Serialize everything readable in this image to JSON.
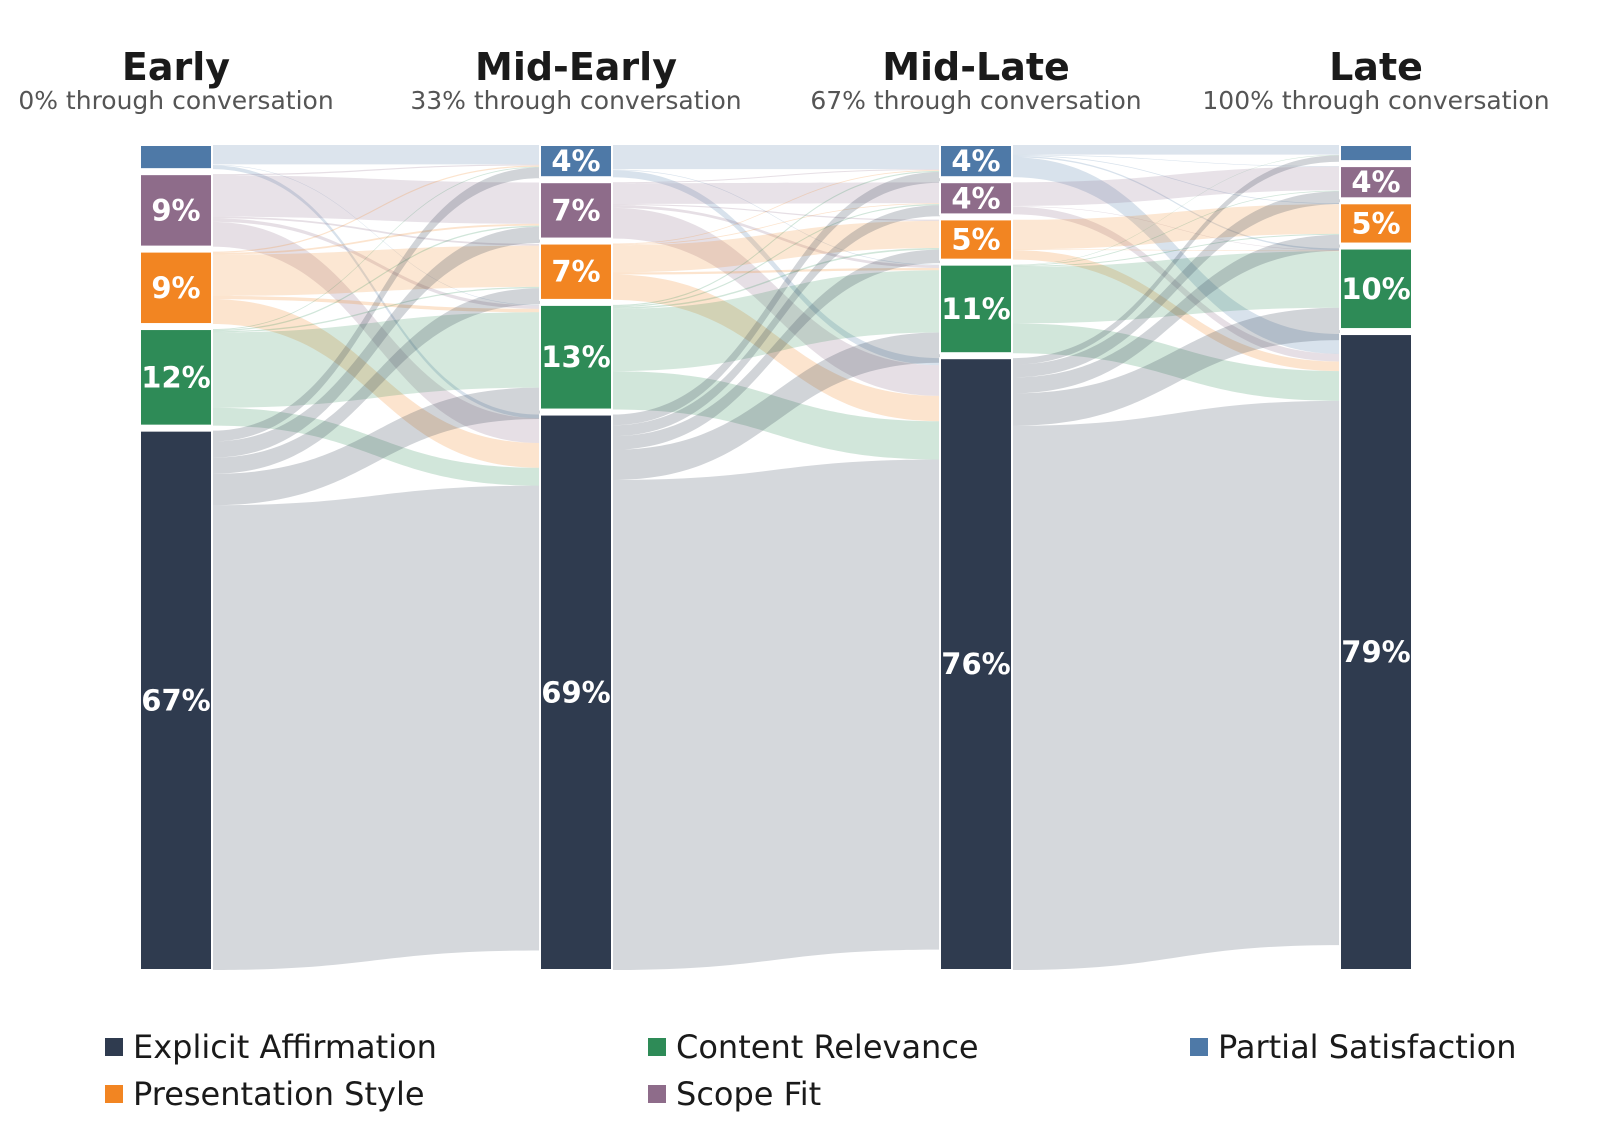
{
  "chart_data": {
    "type": "sankey",
    "stages": [
      {
        "name": "Early",
        "subtitle": "0% through conversation"
      },
      {
        "name": "Mid-Early",
        "subtitle": "33% through conversation"
      },
      {
        "name": "Mid-Late",
        "subtitle": "67% through conversation"
      },
      {
        "name": "Late",
        "subtitle": "100% through conversation"
      }
    ],
    "categories": [
      {
        "key": "partial",
        "name": "Partial Satisfaction",
        "color": "#4e79a7"
      },
      {
        "key": "scope",
        "name": "Scope Fit",
        "color": "#8e6c8a"
      },
      {
        "key": "presentation",
        "name": "Presentation Style",
        "color": "#f28522"
      },
      {
        "key": "content",
        "name": "Content Relevance",
        "color": "#2e8b57"
      },
      {
        "key": "explicit",
        "name": "Explicit Affirmation",
        "color": "#2f3b4f"
      }
    ],
    "shares": [
      [
        3,
        9,
        9,
        12,
        67
      ],
      [
        4,
        7,
        7,
        13,
        69
      ],
      [
        4,
        4,
        5,
        11,
        76
      ],
      [
        2,
        4,
        5,
        10,
        79
      ]
    ],
    "segment_labels": [
      [
        "",
        "9%",
        "9%",
        "12%",
        "67%"
      ],
      [
        "4%",
        "7%",
        "7%",
        "13%",
        "69%"
      ],
      [
        "4%",
        "4%",
        "5%",
        "11%",
        "76%"
      ],
      [
        "",
        "4%",
        "5%",
        "10%",
        "79%"
      ]
    ],
    "legend": {
      "rows": [
        [
          "Explicit Affirmation",
          "Content Relevance",
          "Partial Satisfaction"
        ],
        [
          "Presentation Style",
          "Scope Fit"
        ]
      ],
      "placement": "bottom"
    }
  }
}
